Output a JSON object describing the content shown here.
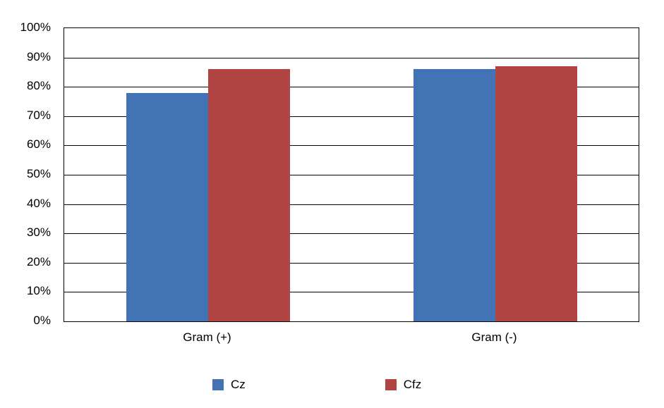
{
  "chart_data": {
    "type": "bar",
    "title": "",
    "xlabel": "",
    "ylabel": "",
    "categories": [
      "Gram (+)",
      "Gram (-)"
    ],
    "series": [
      {
        "name": "Cz",
        "color": "#4273B4",
        "values": [
          78,
          86
        ]
      },
      {
        "name": "Cfz",
        "color": "#B04543",
        "values": [
          86,
          87
        ]
      }
    ],
    "ylim": [
      0,
      100
    ],
    "y_tick_step": 10,
    "y_tick_labels": [
      "0%",
      "10%",
      "20%",
      "30%",
      "40%",
      "50%",
      "60%",
      "70%",
      "80%",
      "90%",
      "100%"
    ],
    "grid": true,
    "legend_position": "bottom"
  },
  "colors": {
    "background": "#FFFFFF",
    "gridline": "#000000",
    "text": "#000000",
    "series_cz": "#4273B4",
    "series_cfz": "#B04543"
  }
}
